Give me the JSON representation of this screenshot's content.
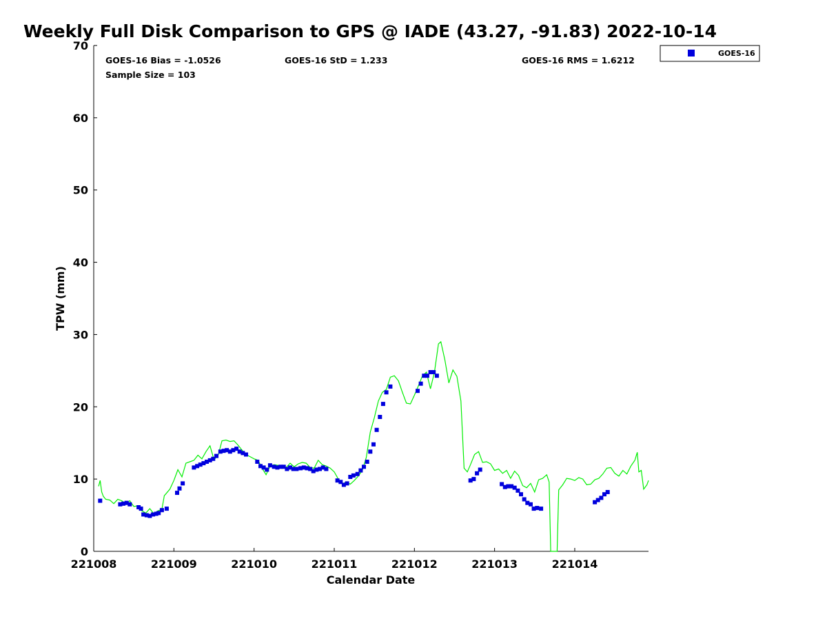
{
  "chart_data": {
    "type": "scatter",
    "title": "Weekly Full Disk Comparison to GPS @ IADE (43.27, -91.83) 2022-10-14",
    "xlabel": "Calendar Date",
    "ylabel": "TPW (mm)",
    "xlim": [
      "221008",
      "221014.92"
    ],
    "ylim": [
      0,
      70
    ],
    "x_ticks": [
      "221008",
      "221009",
      "221010",
      "221011",
      "221012",
      "221013",
      "221014"
    ],
    "y_ticks": [
      0,
      10,
      20,
      30,
      40,
      50,
      60,
      70
    ],
    "grid": false,
    "legend": {
      "position": "top-right",
      "entries": [
        "GOES-16"
      ]
    },
    "colors": {
      "goes16": "#0000dd",
      "gps_line": "#00ee00"
    },
    "stats": {
      "bias": "GOES-16 Bias = -1.0526",
      "std": "GOES-16 StD = 1.233",
      "rms": "GOES-16 RMS = 1.6212",
      "sample": "Sample Size = 103"
    },
    "series": [
      {
        "name": "GOES-16",
        "marker": "square",
        "points": [
          [
            "221008.08",
            7.0
          ],
          [
            "221008.33",
            6.5
          ],
          [
            "221008.37",
            6.6
          ],
          [
            "221008.41",
            6.7
          ],
          [
            "221008.45",
            6.5
          ],
          [
            "221008.56",
            6.1
          ],
          [
            "221008.59",
            5.9
          ],
          [
            "221008.62",
            5.1
          ],
          [
            "221008.66",
            5.0
          ],
          [
            "221008.70",
            4.9
          ],
          [
            "221008.74",
            5.1
          ],
          [
            "221008.78",
            5.2
          ],
          [
            "221008.81",
            5.3
          ],
          [
            "221008.85",
            5.7
          ],
          [
            "221008.91",
            5.9
          ],
          [
            "221009.04",
            8.1
          ],
          [
            "221009.07",
            8.7
          ],
          [
            "221009.11",
            9.4
          ],
          [
            "221009.25",
            11.6
          ],
          [
            "221009.29",
            11.8
          ],
          [
            "221009.33",
            12.0
          ],
          [
            "221009.37",
            12.2
          ],
          [
            "221009.41",
            12.4
          ],
          [
            "221009.45",
            12.6
          ],
          [
            "221009.49",
            12.8
          ],
          [
            "221009.53",
            13.2
          ],
          [
            "221009.58",
            13.8
          ],
          [
            "221009.62",
            13.9
          ],
          [
            "221009.66",
            14.0
          ],
          [
            "221009.70",
            13.8
          ],
          [
            "221009.74",
            14.0
          ],
          [
            "221009.78",
            14.2
          ],
          [
            "221009.82",
            13.8
          ],
          [
            "221009.86",
            13.6
          ],
          [
            "221009.90",
            13.4
          ],
          [
            "221010.04",
            12.4
          ],
          [
            "221010.08",
            11.8
          ],
          [
            "221010.12",
            11.6
          ],
          [
            "221010.16",
            11.3
          ],
          [
            "221010.20",
            11.9
          ],
          [
            "221010.25",
            11.7
          ],
          [
            "221010.29",
            11.6
          ],
          [
            "221010.33",
            11.7
          ],
          [
            "221010.37",
            11.7
          ],
          [
            "221010.41",
            11.4
          ],
          [
            "221010.45",
            11.6
          ],
          [
            "221010.49",
            11.4
          ],
          [
            "221010.53",
            11.4
          ],
          [
            "221010.58",
            11.5
          ],
          [
            "221010.62",
            11.6
          ],
          [
            "221010.66",
            11.5
          ],
          [
            "221010.70",
            11.4
          ],
          [
            "221010.74",
            11.1
          ],
          [
            "221010.78",
            11.3
          ],
          [
            "221010.82",
            11.4
          ],
          [
            "221010.86",
            11.6
          ],
          [
            "221010.90",
            11.4
          ],
          [
            "221011.04",
            9.8
          ],
          [
            "221011.08",
            9.6
          ],
          [
            "221011.12",
            9.2
          ],
          [
            "221011.16",
            9.4
          ],
          [
            "221011.20",
            10.3
          ],
          [
            "221011.24",
            10.5
          ],
          [
            "221011.29",
            10.7
          ],
          [
            "221011.33",
            11.2
          ],
          [
            "221011.37",
            11.7
          ],
          [
            "221011.41",
            12.4
          ],
          [
            "221011.45",
            13.8
          ],
          [
            "221011.49",
            14.8
          ],
          [
            "221011.53",
            16.8
          ],
          [
            "221011.57",
            18.6
          ],
          [
            "221011.61",
            20.4
          ],
          [
            "221011.65",
            22.0
          ],
          [
            "221011.70",
            22.8
          ],
          [
            "221012.04",
            22.2
          ],
          [
            "221012.08",
            23.2
          ],
          [
            "221012.12",
            24.3
          ],
          [
            "221012.16",
            24.3
          ],
          [
            "221012.20",
            24.8
          ],
          [
            "221012.24",
            24.8
          ],
          [
            "221012.28",
            24.3
          ],
          [
            "221012.70",
            9.8
          ],
          [
            "221012.74",
            10.0
          ],
          [
            "221012.78",
            10.8
          ],
          [
            "221012.82",
            11.3
          ],
          [
            "221013.09",
            9.3
          ],
          [
            "221013.13",
            8.9
          ],
          [
            "221013.17",
            9.0
          ],
          [
            "221013.21",
            9.0
          ],
          [
            "221013.25",
            8.8
          ],
          [
            "221013.29",
            8.4
          ],
          [
            "221013.33",
            7.9
          ],
          [
            "221013.37",
            7.2
          ],
          [
            "221013.41",
            6.7
          ],
          [
            "221013.45",
            6.5
          ],
          [
            "221013.49",
            5.9
          ],
          [
            "221013.53",
            6.0
          ],
          [
            "221013.58",
            5.9
          ],
          [
            "221014.25",
            6.8
          ],
          [
            "221014.29",
            7.1
          ],
          [
            "221014.33",
            7.4
          ],
          [
            "221014.37",
            7.9
          ],
          [
            "221014.41",
            8.2
          ]
        ]
      },
      {
        "type": "line",
        "points": [
          [
            "221008.06",
            9.0
          ],
          [
            "221008.08",
            9.8
          ],
          [
            "221008.10",
            8.2
          ],
          [
            "221008.12",
            7.6
          ],
          [
            "221008.15",
            7.2
          ],
          [
            "221008.20",
            7.1
          ],
          [
            "221008.25",
            6.6
          ],
          [
            "221008.30",
            7.2
          ],
          [
            "221008.35",
            7.0
          ],
          [
            "221008.40",
            6.6
          ],
          [
            "221008.45",
            7.0
          ],
          [
            "221008.50",
            6.2
          ],
          [
            "221008.55",
            6.3
          ],
          [
            "221008.60",
            5.6
          ],
          [
            "221008.65",
            5.3
          ],
          [
            "221008.70",
            5.9
          ],
          [
            "221008.75",
            5.2
          ],
          [
            "221008.80",
            5.6
          ],
          [
            "221008.85",
            5.8
          ],
          [
            "221008.88",
            7.7
          ],
          [
            "221008.95",
            8.6
          ],
          [
            "221009.00",
            9.8
          ],
          [
            "221009.05",
            11.3
          ],
          [
            "221009.10",
            10.3
          ],
          [
            "221009.15",
            12.2
          ],
          [
            "221009.20",
            12.4
          ],
          [
            "221009.25",
            12.6
          ],
          [
            "221009.30",
            13.3
          ],
          [
            "221009.35",
            12.8
          ],
          [
            "221009.40",
            13.8
          ],
          [
            "221009.45",
            14.6
          ],
          [
            "221009.50",
            12.7
          ],
          [
            "221009.55",
            13.2
          ],
          [
            "221009.60",
            15.3
          ],
          [
            "221009.65",
            15.4
          ],
          [
            "221009.70",
            15.2
          ],
          [
            "221009.75",
            15.3
          ],
          [
            "221009.80",
            14.7
          ],
          [
            "221009.85",
            14.0
          ],
          [
            "221009.90",
            13.4
          ],
          [
            "221009.95",
            13.1
          ],
          [
            "221010.00",
            12.8
          ],
          [
            "221010.05",
            12.6
          ],
          [
            "221010.10",
            11.5
          ],
          [
            "221010.15",
            10.6
          ],
          [
            "221010.20",
            11.8
          ],
          [
            "221010.25",
            12.0
          ],
          [
            "221010.30",
            11.9
          ],
          [
            "221010.35",
            11.8
          ],
          [
            "221010.40",
            11.6
          ],
          [
            "221010.45",
            12.2
          ],
          [
            "221010.50",
            11.7
          ],
          [
            "221010.55",
            12.1
          ],
          [
            "221010.60",
            12.3
          ],
          [
            "221010.65",
            12.2
          ],
          [
            "221010.70",
            11.6
          ],
          [
            "221010.75",
            11.5
          ],
          [
            "221010.80",
            12.6
          ],
          [
            "221010.85",
            12.0
          ],
          [
            "221010.90",
            11.8
          ],
          [
            "221010.95",
            11.5
          ],
          [
            "221011.00",
            11.0
          ],
          [
            "221011.05",
            10.0
          ],
          [
            "221011.10",
            9.3
          ],
          [
            "221011.15",
            9.6
          ],
          [
            "221011.20",
            9.3
          ],
          [
            "221011.25",
            9.8
          ],
          [
            "221011.30",
            10.4
          ],
          [
            "221011.35",
            11.2
          ],
          [
            "221011.40",
            13.0
          ],
          [
            "221011.45",
            16.5
          ],
          [
            "221011.50",
            18.5
          ],
          [
            "221011.55",
            20.8
          ],
          [
            "221011.60",
            22.0
          ],
          [
            "221011.65",
            22.4
          ],
          [
            "221011.70",
            24.1
          ],
          [
            "221011.75",
            24.3
          ],
          [
            "221011.80",
            23.6
          ],
          [
            "221011.85",
            22.0
          ],
          [
            "221011.90",
            20.5
          ],
          [
            "221011.95",
            20.4
          ],
          [
            "221012.00",
            21.6
          ],
          [
            "221012.05",
            22.9
          ],
          [
            "221012.10",
            24.3
          ],
          [
            "221012.15",
            24.8
          ],
          [
            "221012.20",
            22.5
          ],
          [
            "221012.25",
            24.8
          ],
          [
            "221012.30",
            28.7
          ],
          [
            "221012.33",
            29.0
          ],
          [
            "221012.38",
            26.5
          ],
          [
            "221012.43",
            23.3
          ],
          [
            "221012.48",
            25.1
          ],
          [
            "221012.53",
            24.2
          ],
          [
            "221012.58",
            20.8
          ],
          [
            "221012.62",
            11.5
          ],
          [
            "221012.66",
            11.0
          ],
          [
            "221012.70",
            12.0
          ],
          [
            "221012.75",
            13.4
          ],
          [
            "221012.80",
            13.8
          ],
          [
            "221012.85",
            12.3
          ],
          [
            "221012.90",
            12.4
          ],
          [
            "221012.95",
            12.1
          ],
          [
            "221013.00",
            11.2
          ],
          [
            "221013.05",
            11.4
          ],
          [
            "221013.10",
            10.8
          ],
          [
            "221013.15",
            11.2
          ],
          [
            "221013.20",
            10.1
          ],
          [
            "221013.25",
            11.1
          ],
          [
            "221013.30",
            10.5
          ],
          [
            "221013.35",
            9.1
          ],
          [
            "221013.40",
            8.8
          ],
          [
            "221013.45",
            9.4
          ],
          [
            "221013.50",
            8.2
          ],
          [
            "221013.55",
            9.9
          ],
          [
            "221013.60",
            10.1
          ],
          [
            "221013.65",
            10.6
          ],
          [
            "221013.68",
            9.6
          ],
          [
            "221013.70",
            0.0
          ],
          [
            "221013.78",
            0.0
          ],
          [
            "221013.80",
            8.5
          ],
          [
            "221013.85",
            9.2
          ],
          [
            "221013.90",
            10.1
          ],
          [
            "221013.95",
            10.0
          ],
          [
            "221014.00",
            9.8
          ],
          [
            "221014.05",
            10.2
          ],
          [
            "221014.10",
            10.0
          ],
          [
            "221014.15",
            9.2
          ],
          [
            "221014.20",
            9.3
          ],
          [
            "221014.25",
            9.9
          ],
          [
            "221014.30",
            10.1
          ],
          [
            "221014.35",
            10.7
          ],
          [
            "221014.40",
            11.5
          ],
          [
            "221014.45",
            11.6
          ],
          [
            "221014.50",
            10.8
          ],
          [
            "221014.55",
            10.4
          ],
          [
            "221014.60",
            11.2
          ],
          [
            "221014.65",
            10.7
          ],
          [
            "221014.70",
            11.8
          ],
          [
            "221014.75",
            12.6
          ],
          [
            "221014.78",
            13.7
          ],
          [
            "221014.80",
            11.0
          ],
          [
            "221014.83",
            11.2
          ],
          [
            "221014.86",
            8.6
          ],
          [
            "221014.90",
            9.2
          ],
          [
            "221014.92",
            9.8
          ]
        ]
      }
    ]
  }
}
